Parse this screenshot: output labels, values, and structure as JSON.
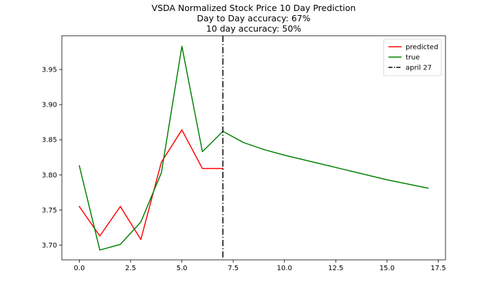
{
  "chart_data": {
    "type": "line",
    "title": "VSDA Normalized Stock Price 10 Day Prediction",
    "subtitle_lines": [
      "Day to Day accuracy: 67%",
      "10 day accuracy: 50%"
    ],
    "xlabel": "",
    "ylabel": "",
    "xlim": [
      -0.85,
      17.85
    ],
    "ylim": [
      3.679,
      3.998
    ],
    "xticks": [
      0.0,
      2.5,
      5.0,
      7.5,
      10.0,
      12.5,
      15.0,
      17.5
    ],
    "xtick_labels": [
      "0.0",
      "2.5",
      "5.0",
      "7.5",
      "10.0",
      "12.5",
      "15.0",
      "17.5"
    ],
    "yticks": [
      3.7,
      3.75,
      3.8,
      3.85,
      3.9,
      3.95
    ],
    "ytick_labels": [
      "3.70",
      "3.75",
      "3.80",
      "3.85",
      "3.90",
      "3.95"
    ],
    "grid": false,
    "legend_position": "top-right",
    "series": [
      {
        "name": "predicted",
        "color": "#ff0000",
        "style": "solid",
        "x": [
          0,
          1,
          2,
          3,
          4,
          5,
          6,
          7
        ],
        "y": [
          3.755,
          3.713,
          3.755,
          3.708,
          3.818,
          3.864,
          3.809,
          3.809
        ]
      },
      {
        "name": "true",
        "color": "#008000",
        "style": "solid",
        "x": [
          0,
          1,
          2,
          3,
          4,
          5,
          6,
          7,
          8,
          9,
          10,
          11,
          12,
          13,
          14,
          15,
          16,
          17
        ],
        "y": [
          3.813,
          3.693,
          3.701,
          3.733,
          3.803,
          3.983,
          3.833,
          3.862,
          3.846,
          3.836,
          3.828,
          3.821,
          3.814,
          3.807,
          3.8,
          3.793,
          3.787,
          3.781
        ]
      }
    ],
    "vline": {
      "name": "april 27",
      "x": 7,
      "color": "#000000",
      "style": "dashdot"
    }
  }
}
